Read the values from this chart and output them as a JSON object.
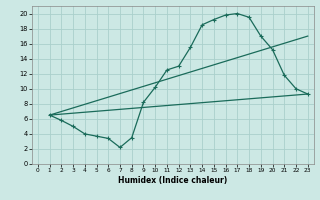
{
  "title": "",
  "xlabel": "Humidex (Indice chaleur)",
  "ylabel": "",
  "bg_color": "#cce8e4",
  "grid_color": "#aad0cc",
  "line_color": "#1a6b5a",
  "xlim": [
    -0.5,
    23.5
  ],
  "ylim": [
    0,
    21
  ],
  "xticks": [
    0,
    1,
    2,
    3,
    4,
    5,
    6,
    7,
    8,
    9,
    10,
    11,
    12,
    13,
    14,
    15,
    16,
    17,
    18,
    19,
    20,
    21,
    22,
    23
  ],
  "yticks": [
    0,
    2,
    4,
    6,
    8,
    10,
    12,
    14,
    16,
    18,
    20
  ],
  "line1_x": [
    1,
    2,
    3,
    4,
    5,
    6,
    7,
    8,
    9,
    10,
    11,
    12,
    13,
    14,
    15,
    16,
    17,
    18,
    19,
    20,
    21,
    22,
    23
  ],
  "line1_y": [
    6.5,
    5.8,
    5.0,
    4.0,
    3.7,
    3.4,
    2.2,
    3.5,
    8.2,
    10.2,
    12.5,
    13.0,
    15.5,
    18.5,
    19.2,
    19.8,
    20.0,
    19.5,
    17.0,
    15.2,
    11.8,
    10.0,
    9.3
  ],
  "line2_x": [
    1,
    23
  ],
  "line2_y": [
    6.5,
    17.0
  ],
  "line3_x": [
    1,
    23
  ],
  "line3_y": [
    6.5,
    9.3
  ],
  "marker": "+"
}
